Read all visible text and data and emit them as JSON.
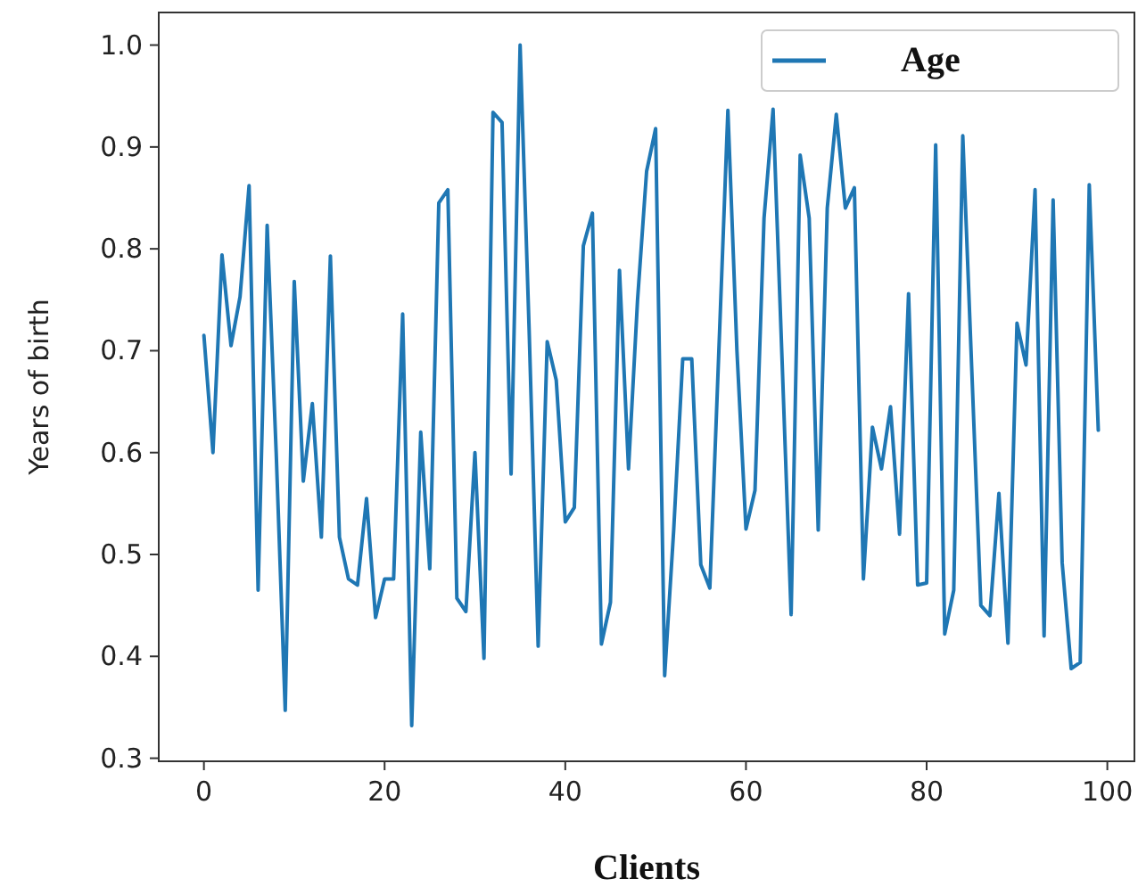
{
  "chart_data": {
    "type": "line",
    "xlabel": "Clients",
    "ylabel": "Years of birth",
    "x": [
      0,
      1,
      2,
      3,
      4,
      5,
      6,
      7,
      8,
      9,
      10,
      11,
      12,
      13,
      14,
      15,
      16,
      17,
      18,
      19,
      20,
      21,
      22,
      23,
      24,
      25,
      26,
      27,
      28,
      29,
      30,
      31,
      32,
      33,
      34,
      35,
      36,
      37,
      38,
      39,
      40,
      41,
      42,
      43,
      44,
      45,
      46,
      47,
      48,
      49,
      50,
      51,
      52,
      53,
      54,
      55,
      56,
      57,
      58,
      59,
      60,
      61,
      62,
      63,
      64,
      65,
      66,
      67,
      68,
      69,
      70,
      71,
      72,
      73,
      74,
      75,
      76,
      77,
      78,
      79,
      80,
      81,
      82,
      83,
      84,
      85,
      86,
      87,
      88,
      89,
      90,
      91,
      92,
      93,
      94,
      95,
      96,
      97,
      98,
      99
    ],
    "series": [
      {
        "name": "Age",
        "color": "#1f77b4",
        "values": [
          0.715,
          0.6,
          0.794,
          0.705,
          0.753,
          0.862,
          0.465,
          0.823,
          0.6,
          0.347,
          0.768,
          0.572,
          0.648,
          0.517,
          0.793,
          0.517,
          0.476,
          0.47,
          0.555,
          0.438,
          0.476,
          0.476,
          0.736,
          0.332,
          0.62,
          0.486,
          0.845,
          0.858,
          0.457,
          0.444,
          0.6,
          0.398,
          0.934,
          0.924,
          0.579,
          1.0,
          0.72,
          0.41,
          0.709,
          0.671,
          0.532,
          0.546,
          0.803,
          0.835,
          0.412,
          0.453,
          0.779,
          0.584,
          0.75,
          0.876,
          0.918,
          0.381,
          0.524,
          0.692,
          0.692,
          0.49,
          0.467,
          0.7,
          0.936,
          0.7,
          0.525,
          0.563,
          0.83,
          0.937,
          0.69,
          0.441,
          0.892,
          0.83,
          0.524,
          0.84,
          0.932,
          0.84,
          0.86,
          0.476,
          0.625,
          0.584,
          0.645,
          0.52,
          0.756,
          0.47,
          0.472,
          0.902,
          0.422,
          0.465,
          0.911,
          0.68,
          0.45,
          0.44,
          0.56,
          0.413,
          0.727,
          0.686,
          0.858,
          0.42,
          0.848,
          0.492,
          0.388,
          0.394,
          0.863,
          0.622
        ]
      }
    ],
    "xlim": [
      -5,
      103
    ],
    "ylim": [
      0.297,
      1.032
    ],
    "xticks": [
      0,
      20,
      40,
      60,
      80,
      100
    ],
    "yticks": [
      {
        "value": 0.3,
        "label": "0.3"
      },
      {
        "value": 0.4,
        "label": "0.4"
      },
      {
        "value": 0.5,
        "label": "0.5"
      },
      {
        "value": 0.6,
        "label": "0.6"
      },
      {
        "value": 0.7,
        "label": "0.7"
      },
      {
        "value": 0.8,
        "label": "0.8"
      },
      {
        "value": 0.9,
        "label": "0.9"
      },
      {
        "value": 1.0,
        "label": "1.0"
      }
    ],
    "legend": "top right",
    "grid": false
  }
}
